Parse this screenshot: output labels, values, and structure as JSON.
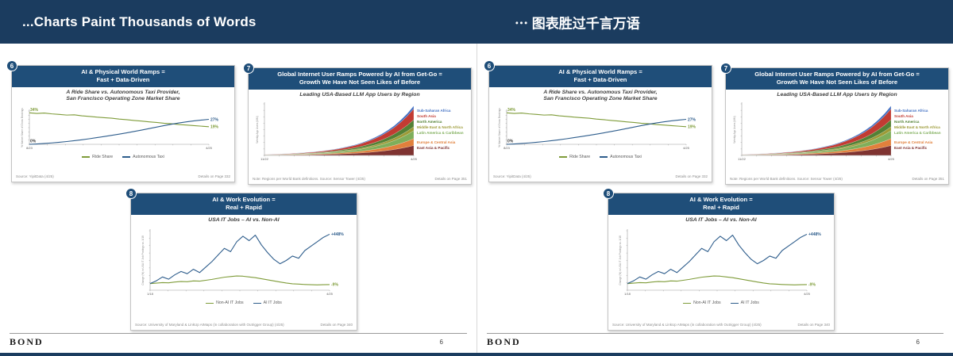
{
  "topbar": {
    "title_left": "...Charts Paint Thousands of Words",
    "title_right": "⋯ 图表胜过千言万语"
  },
  "footer": {
    "brand": "BOND",
    "page": "6"
  },
  "cards": [
    {
      "badge": "6",
      "title1": "AI & Physical World Ramps =",
      "title2": "Fast + Data-Driven",
      "subtitle1": "A Ride Share vs. Autonomous Taxi Provider,",
      "subtitle2": "San Francisco Operating Zone Market Share",
      "source": "Source: YipitData (4/25)",
      "details": "Details on Page 332"
    },
    {
      "badge": "7",
      "title1": "Global Internet User Ramps Powered by AI from Get-Go =",
      "title2": "Growth We Have Not Seen Likes of Before",
      "subtitle1": "Leading USA-Based LLM App Users by Region",
      "source": "Note: Regions per World Bank definitions. Source: Sensor Tower (4/25)",
      "details": "Details on Page 351"
    },
    {
      "badge": "8",
      "title1": "AI & Work Evolution =",
      "title2": "Real + Rapid",
      "subtitle1": "USA IT Jobs – AI vs. Non-AI",
      "source": "Source: University of Maryland & LinkUp AIMaps (in collaboration with Outrigger Group) (4/25)",
      "details": "Details on Page 340"
    }
  ],
  "chart_data": [
    {
      "type": "line",
      "title": "A Ride Share vs. Autonomous Taxi Provider, San Francisco Operating Zone Market Share",
      "ylabel": "% Market Share of Gross Bookings",
      "x_ticks": [
        "8/23",
        "4/25"
      ],
      "ylim": [
        0,
        36
      ],
      "grid": false,
      "legend_position": "bottom",
      "series": [
        {
          "name": "Ride Share",
          "color": "#7f9c3a",
          "start_label": "34%",
          "start_label_color": "#7f9c3a",
          "end_label": "19%",
          "values": [
            34,
            33.4,
            33.8,
            32.9,
            32.3,
            31.6,
            31.9,
            30.8,
            30.2,
            29.4,
            28.8,
            28.2,
            27.3,
            26.6,
            25.8,
            25.1,
            24.3,
            23.6,
            22.8,
            22.2,
            21.4,
            20.8,
            20.2,
            19.6,
            19
          ]
        },
        {
          "name": "Autonomous Taxi",
          "color": "#2e5d8c",
          "start_label": "0%",
          "start_label_color": "#404040",
          "end_label": "27%",
          "values": [
            0,
            0.4,
            0.9,
            1.5,
            2.2,
            3,
            3.9,
            4.9,
            6,
            7.2,
            8.4,
            9.7,
            11,
            12.4,
            13.9,
            15.4,
            17,
            18.6,
            20.2,
            21.7,
            23.1,
            24.3,
            25.3,
            26.2,
            27
          ]
        }
      ]
    },
    {
      "type": "area",
      "title": "Leading USA-Based LLM App Users by Region",
      "ylabel": "Weekly App Users (MM)",
      "x_ticks": [
        "11/22",
        "4/25"
      ],
      "ylim": [
        0,
        104
      ],
      "grid": false,
      "legend_position": "right",
      "series": [
        {
          "name": "Sub-Saharan Africa",
          "color": "#4472c4",
          "values": [
            0.1,
            0.1,
            0.2,
            0.2,
            0.2,
            0.3,
            0.3,
            0.4,
            0.5,
            0.6,
            0.7,
            0.8,
            0.9,
            1.1,
            1.3,
            1.5,
            1.8,
            2.2,
            2.6,
            3,
            3.6,
            4.3,
            5.1,
            6
          ]
        },
        {
          "name": "South Asia",
          "color": "#c23b33",
          "values": [
            0.4,
            0.5,
            0.6,
            0.7,
            0.9,
            1,
            1.2,
            1.5,
            1.7,
            2,
            2.4,
            2.9,
            3.4,
            4,
            4.8,
            5.7,
            6.7,
            7.9,
            9.4,
            11.2,
            13.2,
            15.7,
            18.6,
            22
          ]
        },
        {
          "name": "North America",
          "color": "#538135",
          "values": [
            0.3,
            0.3,
            0.4,
            0.5,
            0.6,
            0.7,
            0.8,
            0.9,
            1.1,
            1.3,
            1.5,
            1.8,
            2.2,
            2.6,
            3,
            3.6,
            4.3,
            5.1,
            6,
            7.1,
            8.4,
            10,
            11.8,
            14
          ]
        },
        {
          "name": "Middle East & North Africa",
          "color": "#9c9a36",
          "values": [
            0.2,
            0.2,
            0.2,
            0.3,
            0.3,
            0.4,
            0.4,
            0.5,
            0.6,
            0.7,
            0.9,
            1,
            1.2,
            1.5,
            1.7,
            2.1,
            2.4,
            2.9,
            3.4,
            4.1,
            4.8,
            5.7,
            6.8,
            8
          ]
        },
        {
          "name": "Latin America & Caribbean",
          "color": "#7fae5a",
          "values": [
            0.3,
            0.4,
            0.4,
            0.5,
            0.6,
            0.8,
            0.9,
            1.1,
            1.2,
            1.5,
            1.8,
            2.1,
            2.5,
            2.9,
            3.5,
            4.1,
            4.9,
            5.8,
            6.8,
            8.1,
            9.6,
            11.4,
            13.5,
            16
          ]
        },
        {
          "name": "Europe & Central Asia",
          "color": "#e1803c",
          "values": [
            0.3,
            0.3,
            0.4,
            0.5,
            0.6,
            0.7,
            0.8,
            0.9,
            1.1,
            1.3,
            1.5,
            1.8,
            2.2,
            2.6,
            3,
            3.6,
            4.3,
            5.1,
            6,
            7.1,
            8.4,
            10,
            11.8,
            14
          ]
        },
        {
          "name": "East Asia & Pacific",
          "color": "#7f3331",
          "values": [
            0.4,
            0.5,
            0.6,
            0.7,
            0.8,
            0.9,
            1.1,
            1.3,
            1.6,
            1.9,
            2.2,
            2.6,
            3.1,
            3.7,
            4.3,
            5.1,
            6.1,
            7.2,
            8.6,
            10.1,
            12,
            14.3,
            16.9,
            20
          ]
        }
      ]
    },
    {
      "type": "line",
      "title": "USA IT Jobs – AI vs. Non-AI",
      "ylabel": "Change (%) in USA IT Job Postings vs. 1/18",
      "x_ticks": [
        "1/18",
        "4/25"
      ],
      "ylim": [
        -60,
        480
      ],
      "grid": false,
      "legend_position": "bottom",
      "series": [
        {
          "name": "Non-AI IT Jobs",
          "color": "#7f9c3a",
          "end_label": "-9%",
          "values": [
            0,
            4,
            9,
            7,
            14,
            19,
            17,
            24,
            22,
            30,
            38,
            48,
            58,
            64,
            69,
            67,
            60,
            54,
            44,
            34,
            24,
            14,
            5,
            -2,
            -5,
            -8,
            -10,
            -12,
            -10,
            -9
          ]
        },
        {
          "name": "AI IT Jobs",
          "color": "#2e5d8c",
          "end_label": "+448%",
          "values": [
            0,
            25,
            60,
            40,
            80,
            110,
            90,
            130,
            100,
            150,
            200,
            260,
            320,
            290,
            380,
            430,
            390,
            440,
            350,
            280,
            220,
            180,
            210,
            250,
            230,
            300,
            340,
            380,
            420,
            448
          ]
        }
      ]
    }
  ]
}
